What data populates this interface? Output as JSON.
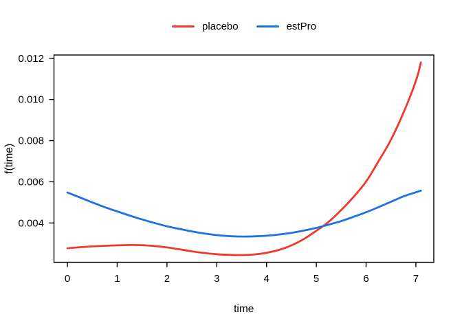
{
  "figure": {
    "background": "#ffffff",
    "text_color": "#000000",
    "axis_color": "#000000"
  },
  "chart_data": {
    "type": "line",
    "title": "",
    "xlabel": "time",
    "ylabel": "f(time)",
    "xlim": [
      -0.27,
      7.36
    ],
    "ylim": [
      0.00209,
      0.01216
    ],
    "xticks": [
      0,
      1,
      2,
      3,
      4,
      5,
      6,
      7
    ],
    "xtick_labels": [
      "0",
      "1",
      "2",
      "3",
      "4",
      "5",
      "6",
      "7"
    ],
    "yticks": [
      0.004,
      0.006,
      0.008,
      0.01,
      0.012
    ],
    "ytick_labels": [
      "0.004",
      "0.006",
      "0.008",
      "0.010",
      "0.012"
    ],
    "grid": false,
    "legend_position": "top-center",
    "x": [
      0,
      0.25,
      0.5,
      0.75,
      1,
      1.25,
      1.5,
      1.75,
      2,
      2.25,
      2.5,
      2.75,
      3,
      3.25,
      3.5,
      3.75,
      4,
      4.25,
      4.5,
      4.75,
      5,
      5.25,
      5.5,
      5.75,
      6,
      6.25,
      6.5,
      6.75,
      7,
      7.1
    ],
    "series": [
      {
        "name": "placebo",
        "color": "#f0392c",
        "values": [
          0.00277,
          0.00282,
          0.00286,
          0.00289,
          0.00291,
          0.00293,
          0.00292,
          0.00288,
          0.00281,
          0.00272,
          0.00262,
          0.00254,
          0.00248,
          0.00245,
          0.00244,
          0.00247,
          0.00255,
          0.00269,
          0.00291,
          0.00322,
          0.00362,
          0.00406,
          0.00463,
          0.00527,
          0.00601,
          0.007,
          0.00805,
          0.00935,
          0.0109,
          0.0118
        ]
      },
      {
        "name": "estPro",
        "color": "#1c72e2",
        "values": [
          0.00548,
          0.00524,
          0.005,
          0.00477,
          0.00456,
          0.00436,
          0.00417,
          0.004,
          0.00384,
          0.00371,
          0.00359,
          0.00349,
          0.00341,
          0.00336,
          0.00334,
          0.00335,
          0.00338,
          0.00344,
          0.00352,
          0.00363,
          0.00376,
          0.00392,
          0.00409,
          0.0043,
          0.00452,
          0.00477,
          0.00503,
          0.00529,
          0.00549,
          0.00557
        ]
      }
    ]
  }
}
